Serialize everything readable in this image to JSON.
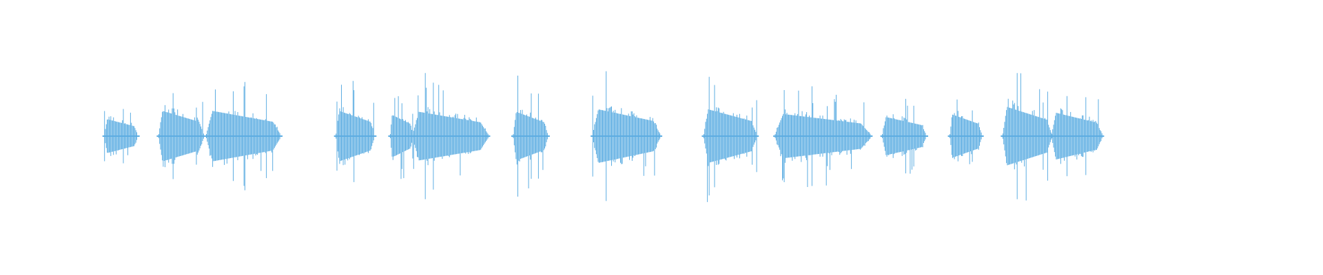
{
  "chart_data": {
    "type": "waveform",
    "color": "#5dade2",
    "xlim": [
      0,
      100
    ],
    "ylim": [
      -1,
      1
    ],
    "segments": [
      {
        "start": 7.9,
        "end": 10.4,
        "peak": 0.48
      },
      {
        "start": 12.0,
        "end": 15.4,
        "peak": 0.75
      },
      {
        "start": 15.6,
        "end": 21.2,
        "peak": 0.75
      },
      {
        "start": 25.4,
        "end": 28.3,
        "peak": 0.75
      },
      {
        "start": 29.5,
        "end": 31.2,
        "peak": 0.62
      },
      {
        "start": 31.2,
        "end": 36.9,
        "peak": 0.72
      },
      {
        "start": 38.8,
        "end": 41.4,
        "peak": 0.72
      },
      {
        "start": 44.8,
        "end": 49.9,
        "peak": 0.8
      },
      {
        "start": 53.2,
        "end": 57.2,
        "peak": 0.8
      },
      {
        "start": 58.6,
        "end": 65.8,
        "peak": 0.65
      },
      {
        "start": 66.7,
        "end": 70.0,
        "peak": 0.55
      },
      {
        "start": 71.8,
        "end": 74.2,
        "peak": 0.63
      },
      {
        "start": 75.8,
        "end": 79.5,
        "peak": 0.88
      },
      {
        "start": 79.5,
        "end": 83.3,
        "peak": 0.69
      }
    ]
  }
}
